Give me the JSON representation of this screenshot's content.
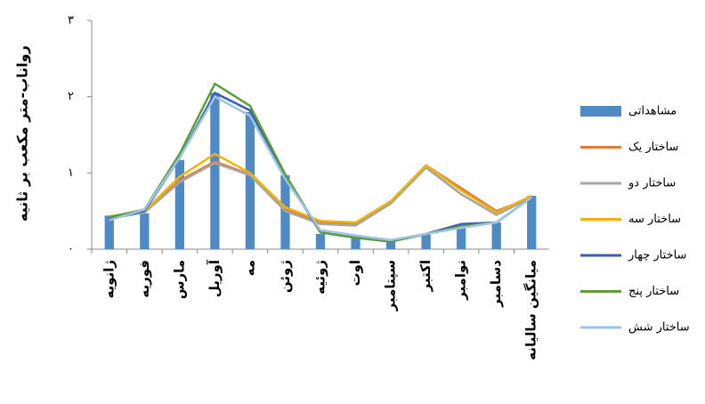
{
  "chart_data": {
    "type": "bar",
    "y_label": "رواناب-متر مکعب بر ثانیه",
    "categories": [
      "ژانویه",
      "فوریه",
      "مارس",
      "آوریل",
      "مه",
      "ژوئن",
      "ژوئیه",
      "اوت",
      "سپتامبر",
      "اکتبر",
      "نوامبر",
      "دسامبر",
      "میانگین سالیانه"
    ],
    "ylim": [
      0,
      3
    ],
    "yticks": [
      {
        "value": 0,
        "label": "۰"
      },
      {
        "value": 1,
        "label": "۱"
      },
      {
        "value": 2,
        "label": "۲"
      },
      {
        "value": 3,
        "label": "۳"
      }
    ],
    "series": [
      {
        "name": "مشاهداتی",
        "type": "bar",
        "color": "#4f8ac4",
        "values": [
          0.44,
          0.47,
          1.17,
          2.05,
          1.8,
          0.97,
          0.2,
          0.17,
          0.1,
          0.2,
          0.3,
          0.35,
          0.7
        ]
      },
      {
        "name": "ساختار یک",
        "type": "line",
        "color": "#e07b39",
        "values": [
          0.42,
          0.5,
          0.9,
          1.15,
          0.98,
          0.52,
          0.35,
          0.33,
          0.62,
          1.1,
          0.8,
          0.5,
          0.68
        ]
      },
      {
        "name": "ساختار دو",
        "type": "line",
        "color": "#a5a5a5",
        "values": [
          0.4,
          0.48,
          0.88,
          1.13,
          0.97,
          0.5,
          0.33,
          0.31,
          0.6,
          1.07,
          0.72,
          0.45,
          0.68
        ]
      },
      {
        "name": "ساختار سه",
        "type": "line",
        "color": "#f0b400",
        "values": [
          0.43,
          0.5,
          0.95,
          1.25,
          1.0,
          0.55,
          0.37,
          0.35,
          0.63,
          1.1,
          0.77,
          0.48,
          0.7
        ]
      },
      {
        "name": "ساختار چهار",
        "type": "line",
        "color": "#3b5fb0",
        "values": [
          0.4,
          0.5,
          1.2,
          2.05,
          1.82,
          0.95,
          0.22,
          0.15,
          0.1,
          0.2,
          0.33,
          0.35,
          0.68
        ]
      },
      {
        "name": "ساختار پنج",
        "type": "line",
        "color": "#5a9e3a",
        "values": [
          0.42,
          0.52,
          1.25,
          2.17,
          1.88,
          0.98,
          0.22,
          0.15,
          0.1,
          0.2,
          0.3,
          0.35,
          0.68
        ]
      },
      {
        "name": "ساختار شش",
        "type": "line",
        "color": "#9dc3e6",
        "values": [
          0.38,
          0.52,
          1.2,
          2.0,
          1.75,
          0.92,
          0.25,
          0.18,
          0.12,
          0.2,
          0.28,
          0.35,
          0.68
        ]
      }
    ]
  }
}
